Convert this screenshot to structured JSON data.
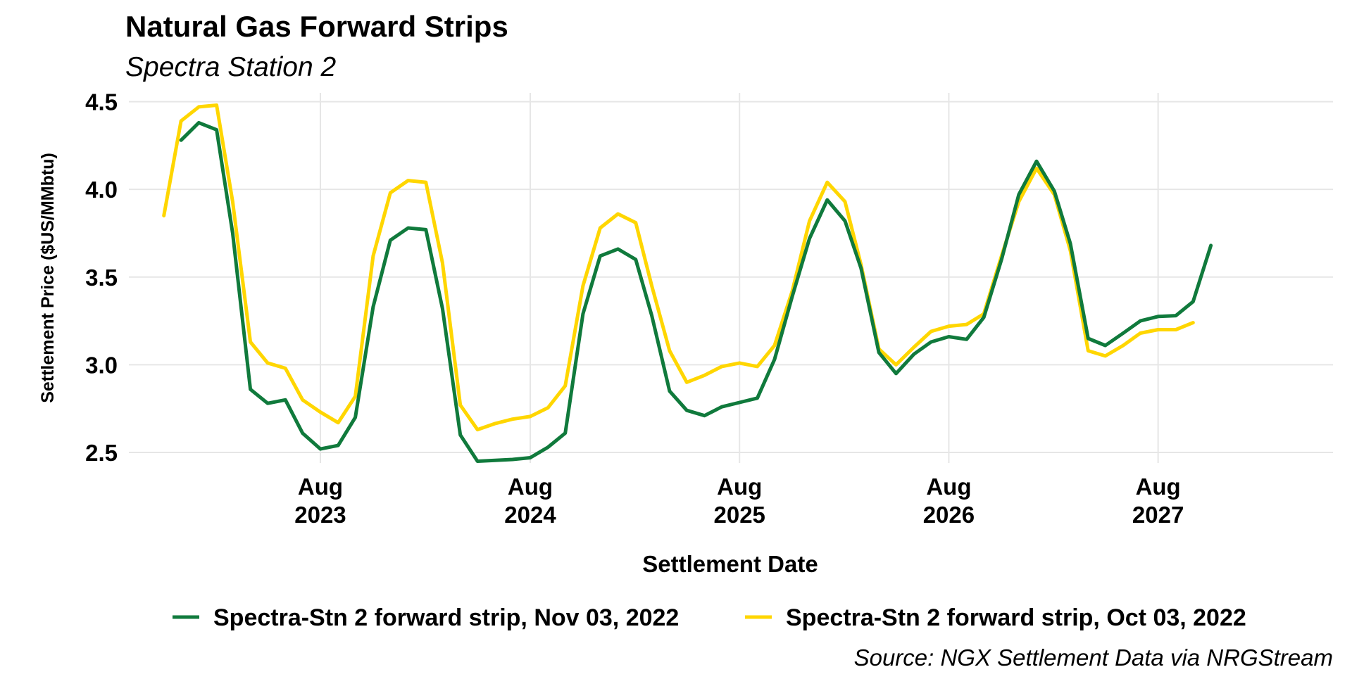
{
  "chart_data": {
    "type": "line",
    "title": "Natural Gas Forward Strips",
    "subtitle": "Spectra Station 2",
    "xlabel": "Settlement Date",
    "ylabel": "Settlement Price ($US/MMbtu)",
    "caption": "Source: NGX Settlement Data via NRGStream",
    "ylim": [
      2.44,
      4.55
    ],
    "xlim": [
      "2022-09-01",
      "2028-06-01"
    ],
    "y_ticks": [
      "2.5",
      "3.0",
      "3.5",
      "4.0",
      "4.5"
    ],
    "x_ticks": [
      {
        "date": "2023-08-01",
        "month": "Aug",
        "year": "2023"
      },
      {
        "date": "2024-08-01",
        "month": "Aug",
        "year": "2024"
      },
      {
        "date": "2025-08-01",
        "month": "Aug",
        "year": "2025"
      },
      {
        "date": "2026-08-01",
        "month": "Aug",
        "year": "2026"
      },
      {
        "date": "2027-08-01",
        "month": "Aug",
        "year": "2027"
      }
    ],
    "grid": true,
    "legend_position": "bottom",
    "series": [
      {
        "name": "Spectra-Stn 2 forward strip, Nov 03, 2022",
        "color": "#107A3C",
        "start": "2022-12-01",
        "values": [
          4.28,
          4.38,
          4.34,
          3.75,
          2.86,
          2.78,
          2.8,
          2.61,
          2.52,
          2.54,
          2.7,
          3.33,
          3.71,
          3.78,
          3.77,
          3.32,
          2.6,
          2.45,
          2.455,
          2.46,
          2.47,
          2.53,
          2.61,
          3.29,
          3.62,
          3.66,
          3.6,
          3.28,
          2.85,
          2.74,
          2.71,
          2.76,
          2.785,
          2.81,
          3.03,
          3.39,
          3.72,
          3.94,
          3.82,
          3.55,
          3.07,
          2.95,
          3.06,
          3.13,
          3.16,
          3.145,
          3.27,
          3.6,
          3.97,
          4.16,
          3.99,
          3.69,
          3.15,
          3.11,
          3.18,
          3.25,
          3.275,
          3.28,
          3.36,
          3.68
        ]
      },
      {
        "name": "Spectra-Stn 2 forward strip, Oct 03, 2022",
        "color": "#FFD600",
        "start": "2022-11-01",
        "values": [
          3.85,
          4.39,
          4.47,
          4.48,
          3.93,
          3.13,
          3.01,
          2.98,
          2.8,
          2.73,
          2.67,
          2.82,
          3.62,
          3.98,
          4.05,
          4.04,
          3.58,
          2.77,
          2.63,
          2.665,
          2.69,
          2.705,
          2.755,
          2.88,
          3.45,
          3.78,
          3.86,
          3.81,
          3.45,
          3.08,
          2.9,
          2.94,
          2.99,
          3.01,
          2.99,
          3.11,
          3.42,
          3.82,
          4.04,
          3.93,
          3.57,
          3.09,
          3.0,
          3.1,
          3.19,
          3.22,
          3.23,
          3.29,
          3.62,
          3.93,
          4.12,
          3.97,
          3.65,
          3.08,
          3.05,
          3.11,
          3.18,
          3.2,
          3.2,
          3.24
        ]
      }
    ]
  }
}
